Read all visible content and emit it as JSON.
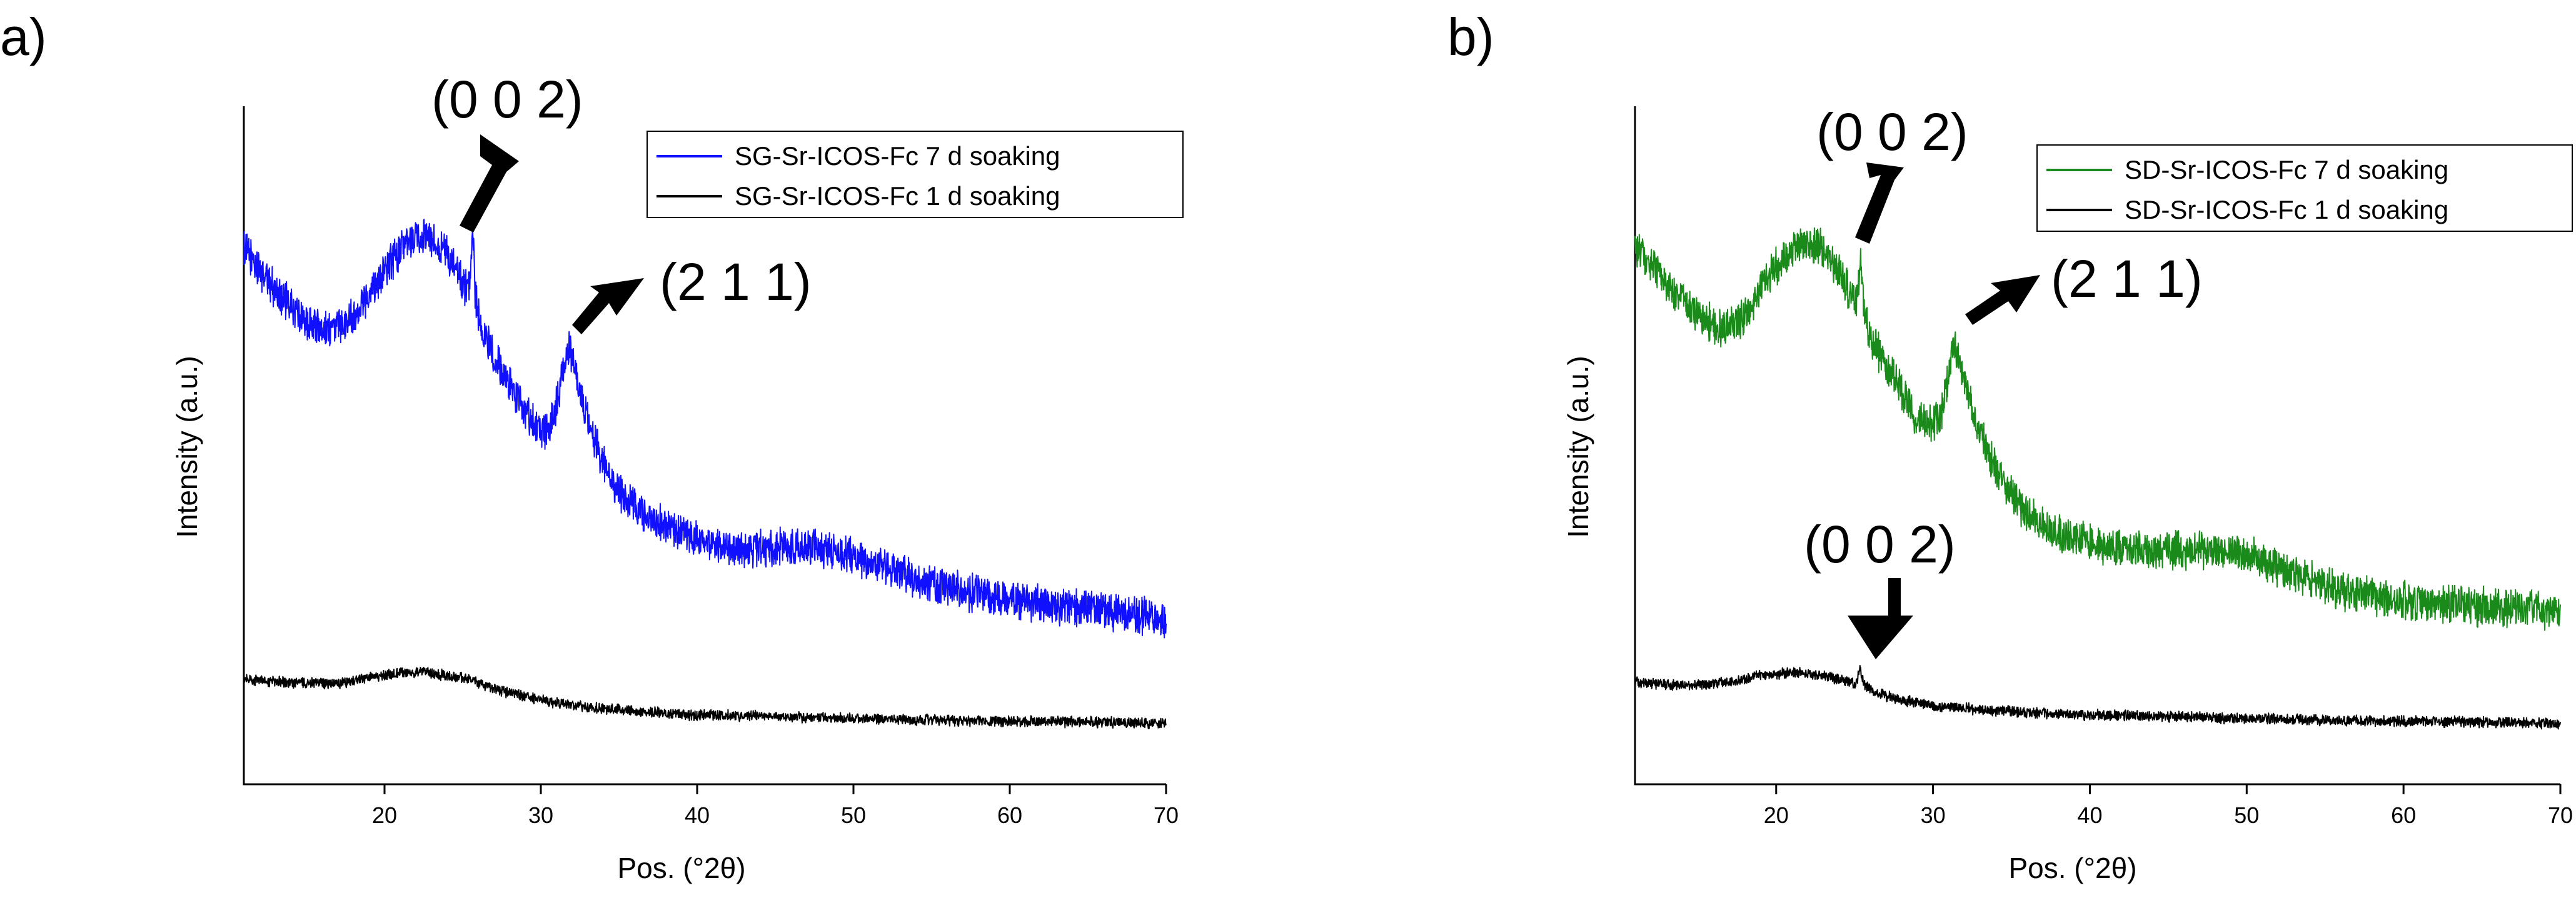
{
  "chart_data": [
    {
      "type": "line",
      "panel_label": "a)",
      "xlabel": "Pos. (°2θ)",
      "ylabel": "Intensity (a.u.)",
      "xlim": [
        11,
        70
      ],
      "ylim": [
        0,
        1
      ],
      "xticks": [
        20,
        30,
        40,
        50,
        60,
        70
      ],
      "xtick_labels": [
        "20",
        "30",
        "40",
        "50",
        "60",
        "70"
      ],
      "legend_position": "top-right",
      "series": [
        {
          "name": "SG-Sr-ICOS-Fc 7 d soaking",
          "color": "#1010ff",
          "noise": 0.032,
          "x": [
            11,
            13,
            15,
            16.5,
            18,
            20,
            21.5,
            22.5,
            23.5,
            24.5,
            25.2,
            25.5,
            25.65,
            25.8,
            26.2,
            27,
            28,
            29,
            30,
            30.5,
            31,
            31.5,
            31.8,
            32.2,
            33,
            34,
            35,
            37,
            40,
            43,
            46,
            49,
            52,
            55,
            58,
            62,
            66,
            70
          ],
          "y": [
            0.79,
            0.73,
            0.68,
            0.67,
            0.69,
            0.76,
            0.8,
            0.81,
            0.8,
            0.76,
            0.73,
            0.73,
            0.82,
            0.72,
            0.67,
            0.63,
            0.59,
            0.55,
            0.52,
            0.52,
            0.56,
            0.62,
            0.64,
            0.61,
            0.54,
            0.47,
            0.43,
            0.39,
            0.36,
            0.345,
            0.35,
            0.345,
            0.32,
            0.295,
            0.28,
            0.265,
            0.255,
            0.245
          ]
        },
        {
          "name": "SG-Sr-ICOS-Fc 1 d soaking",
          "color": "#000000",
          "noise": 0.009,
          "x": [
            11,
            14,
            17,
            19,
            21,
            22.5,
            24,
            25.5,
            27,
            29,
            31,
            33,
            36,
            40,
            45,
            50,
            55,
            60,
            65,
            70
          ],
          "y": [
            0.155,
            0.15,
            0.148,
            0.157,
            0.165,
            0.165,
            0.16,
            0.155,
            0.14,
            0.13,
            0.12,
            0.114,
            0.108,
            0.102,
            0.1,
            0.097,
            0.095,
            0.093,
            0.092,
            0.09
          ]
        }
      ],
      "annotations": [
        {
          "text": "(0 0 2)",
          "x": 25.65
        },
        {
          "text": "(2 1 1)",
          "x": 31.7
        }
      ]
    },
    {
      "type": "line",
      "panel_label": "b)",
      "xlabel": "Pos. (°2θ)",
      "ylabel": "Intensity (a.u.)",
      "xlim": [
        11,
        70
      ],
      "ylim": [
        0,
        1
      ],
      "xticks": [
        20,
        30,
        40,
        50,
        60,
        70
      ],
      "xtick_labels": [
        "20",
        "30",
        "40",
        "50",
        "60",
        "70"
      ],
      "legend_position": "top-right",
      "series": [
        {
          "name": "SD-Sr-ICOS-Fc 7 d soaking",
          "color": "#1a8a1a",
          "noise": 0.032,
          "x": [
            11,
            13,
            15,
            16.5,
            18,
            19.5,
            21,
            22,
            23,
            24,
            24.8,
            25.2,
            25.4,
            25.6,
            26,
            27,
            28,
            29,
            30,
            30.5,
            31,
            31.3,
            31.6,
            32,
            33,
            34,
            36,
            38,
            41,
            44,
            47,
            50,
            53,
            56,
            60,
            65,
            70
          ],
          "y": [
            0.79,
            0.74,
            0.69,
            0.67,
            0.69,
            0.75,
            0.79,
            0.8,
            0.79,
            0.76,
            0.72,
            0.71,
            0.78,
            0.7,
            0.66,
            0.62,
            0.58,
            0.54,
            0.53,
            0.54,
            0.6,
            0.65,
            0.63,
            0.59,
            0.52,
            0.46,
            0.4,
            0.37,
            0.35,
            0.345,
            0.345,
            0.34,
            0.31,
            0.285,
            0.27,
            0.262,
            0.255
          ]
        },
        {
          "name": "SD-Sr-ICOS-Fc 1 d soaking",
          "color": "#000000",
          "noise": 0.009,
          "x": [
            11,
            14,
            17,
            19,
            21,
            23,
            24.5,
            25.1,
            25.35,
            25.6,
            26.3,
            28,
            30,
            33,
            36,
            40,
            45,
            50,
            55,
            60,
            65,
            70
          ],
          "y": [
            0.15,
            0.146,
            0.15,
            0.16,
            0.165,
            0.16,
            0.152,
            0.148,
            0.17,
            0.146,
            0.135,
            0.125,
            0.116,
            0.11,
            0.106,
            0.102,
            0.1,
            0.097,
            0.095,
            0.093,
            0.092,
            0.09
          ]
        }
      ],
      "annotations": [
        {
          "text": "(0 0 2)",
          "x": 25.5
        },
        {
          "text": "(2 1 1)",
          "x": 31.3
        },
        {
          "text": "(0 0 2)",
          "x": 25.35
        }
      ]
    }
  ]
}
